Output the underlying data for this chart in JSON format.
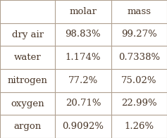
{
  "col_headers": [
    "molar",
    "mass"
  ],
  "row_labels": [
    "dry air",
    "water",
    "nitrogen",
    "oxygen",
    "argon"
  ],
  "rows": [
    [
      "98.83%",
      "99.27%"
    ],
    [
      "1.174%",
      "0.7338%"
    ],
    [
      "77.2%",
      "75.02%"
    ],
    [
      "20.71%",
      "22.99%"
    ],
    [
      "0.9092%",
      "1.26%"
    ]
  ],
  "background_color": "#ffffff",
  "text_color": "#4a3728",
  "line_color": "#b0a090",
  "font_size": 9.5,
  "figsize": [
    2.37,
    1.96
  ],
  "dpi": 100
}
